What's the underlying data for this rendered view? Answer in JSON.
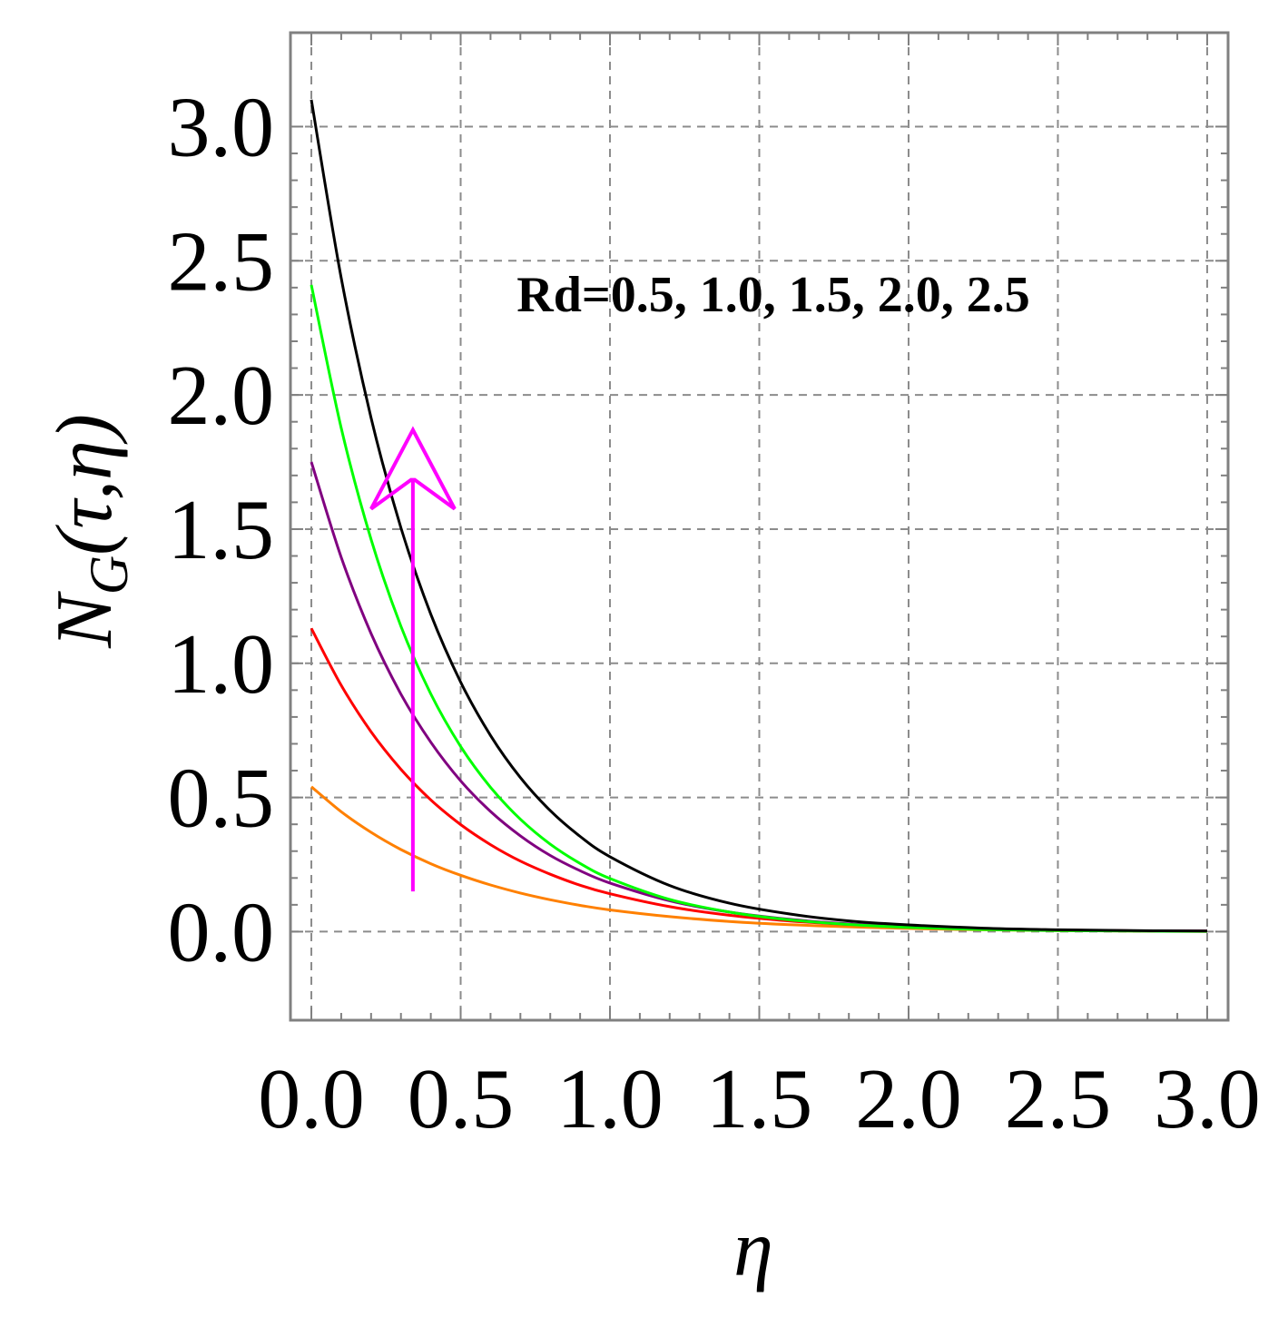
{
  "chart_data": {
    "type": "line",
    "title": "",
    "xlabel": "η",
    "ylabel_main": "N",
    "ylabel_sub": "G",
    "ylabel_args": "(τ,η)",
    "xlim": [
      -0.07,
      3.07
    ],
    "ylim": [
      -0.33,
      3.35
    ],
    "x_ticks": [
      "0.0",
      "0.5",
      "1.0",
      "1.5",
      "2.0",
      "2.5",
      "3.0"
    ],
    "x_tick_values": [
      0.0,
      0.5,
      1.0,
      1.5,
      2.0,
      2.5,
      3.0
    ],
    "y_ticks": [
      "0.0",
      "0.5",
      "1.0",
      "1.5",
      "2.0",
      "2.5",
      "3.0"
    ],
    "y_tick_values": [
      0.0,
      0.5,
      1.0,
      1.5,
      2.0,
      2.5,
      3.0
    ],
    "grid": true,
    "annotation": {
      "text": "Rd=0.5, 1.0, 1.5, 2.0, 2.5",
      "arrow_x": 0.34,
      "arrow_y_from": 0.15,
      "arrow_y_to": 1.87,
      "arrow_color": "#ff00ff"
    },
    "x": [
      0.0,
      0.1,
      0.2,
      0.3,
      0.4,
      0.5,
      0.6,
      0.7,
      0.8,
      0.9,
      1.0,
      1.2,
      1.4,
      1.6,
      1.8,
      2.0,
      2.25,
      2.5,
      2.75,
      3.0
    ],
    "series": [
      {
        "color": "#ff8000",
        "values": [
          0.54,
          0.447,
          0.37,
          0.306,
          0.253,
          0.21,
          0.174,
          0.144,
          0.119,
          0.098,
          0.081,
          0.056,
          0.038,
          0.026,
          0.018,
          0.012,
          0.007,
          0.004,
          0.002,
          0.001
        ]
      },
      {
        "color": "#ff0000",
        "values": [
          1.13,
          0.918,
          0.745,
          0.605,
          0.491,
          0.399,
          0.324,
          0.263,
          0.214,
          0.173,
          0.141,
          0.093,
          0.061,
          0.04,
          0.027,
          0.018,
          0.01,
          0.006,
          0.003,
          0.002
        ]
      },
      {
        "color": "#800080",
        "values": [
          1.75,
          1.395,
          1.111,
          0.885,
          0.706,
          0.562,
          0.448,
          0.357,
          0.284,
          0.227,
          0.181,
          0.115,
          0.073,
          0.046,
          0.029,
          0.019,
          0.01,
          0.005,
          0.003,
          0.002
        ]
      },
      {
        "color": "#00ff00",
        "values": [
          2.41,
          1.877,
          1.462,
          1.138,
          0.886,
          0.69,
          0.538,
          0.419,
          0.326,
          0.254,
          0.198,
          0.12,
          0.073,
          0.044,
          0.027,
          0.016,
          0.008,
          0.004,
          0.002,
          0.001
        ]
      },
      {
        "color": "#000000",
        "values": [
          3.1,
          2.436,
          1.915,
          1.505,
          1.183,
          0.93,
          0.731,
          0.574,
          0.451,
          0.355,
          0.279,
          0.172,
          0.106,
          0.066,
          0.04,
          0.025,
          0.013,
          0.007,
          0.004,
          0.002
        ]
      }
    ]
  }
}
